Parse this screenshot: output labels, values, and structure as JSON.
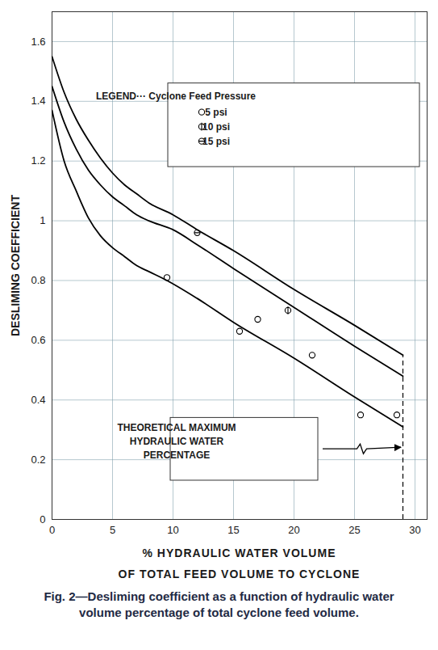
{
  "chart_data": {
    "type": "line",
    "ylabel": "DESLIMING COEFFICIENT",
    "xlabel": [
      "% HYDRAULIC WATER VOLUME",
      "OF TOTAL FEED VOLUME TO CYCLONE"
    ],
    "caption": "Fig. 2—Desliming coefficient as a function of hydraulic water volume percentage of total cyclone feed volume.",
    "legend": "upper right",
    "legend_title": "LEGEND··· Cyclone Feed Pressure",
    "xlim": [
      0,
      31
    ],
    "xticks": [
      0,
      5,
      10,
      15,
      20,
      25,
      30
    ],
    "ylim": [
      0,
      1.7
    ],
    "yticks": [
      0,
      0.2,
      0.4,
      0.6,
      0.8,
      1.0,
      1.2,
      1.4,
      1.6
    ],
    "grid": true,
    "series": [
      {
        "name": "5 psi",
        "color": "#000000",
        "marker": "circle",
        "line_style": "solid",
        "x": [
          0,
          1,
          2,
          3,
          4,
          5,
          6,
          7,
          8,
          9.5,
          12,
          15,
          20,
          25,
          29
        ],
        "values": [
          1.37,
          1.2,
          1.1,
          1.01,
          0.95,
          0.91,
          0.88,
          0.85,
          0.83,
          0.8,
          0.74,
          0.66,
          0.54,
          0.41,
          0.31
        ],
        "points": {
          "x": [
            9.5,
            15.5,
            17,
            21.5,
            25.5,
            28.5
          ],
          "y": [
            0.81,
            0.63,
            0.67,
            0.55,
            0.35,
            0.35
          ]
        }
      },
      {
        "name": "10 psi",
        "color": "#000000",
        "marker": "circle-plus",
        "line_style": "solid",
        "x": [
          0,
          1,
          2,
          3,
          4,
          5,
          6,
          7,
          8,
          10,
          12,
          15,
          20,
          25,
          29
        ],
        "values": [
          1.45,
          1.33,
          1.24,
          1.17,
          1.12,
          1.08,
          1.05,
          1.02,
          1.0,
          0.97,
          0.92,
          0.84,
          0.71,
          0.58,
          0.48
        ],
        "points": {
          "x": [
            19.5
          ],
          "y": [
            0.7
          ]
        }
      },
      {
        "name": "15 psi",
        "color": "#000000",
        "marker": "circle-minus",
        "line_style": "solid",
        "x": [
          0,
          1,
          2,
          3,
          4,
          5,
          6,
          7,
          8,
          10,
          12,
          15,
          20,
          25,
          29
        ],
        "values": [
          1.55,
          1.43,
          1.34,
          1.27,
          1.21,
          1.16,
          1.12,
          1.09,
          1.06,
          1.02,
          0.97,
          0.9,
          0.77,
          0.65,
          0.55
        ],
        "points": {
          "x": [
            12
          ],
          "y": [
            0.96
          ]
        }
      }
    ],
    "annotation": {
      "text": "THEORETICAL MAXIMUM\nHYDRAULIC WATER\nPERCENTAGE",
      "x": 29
    }
  }
}
